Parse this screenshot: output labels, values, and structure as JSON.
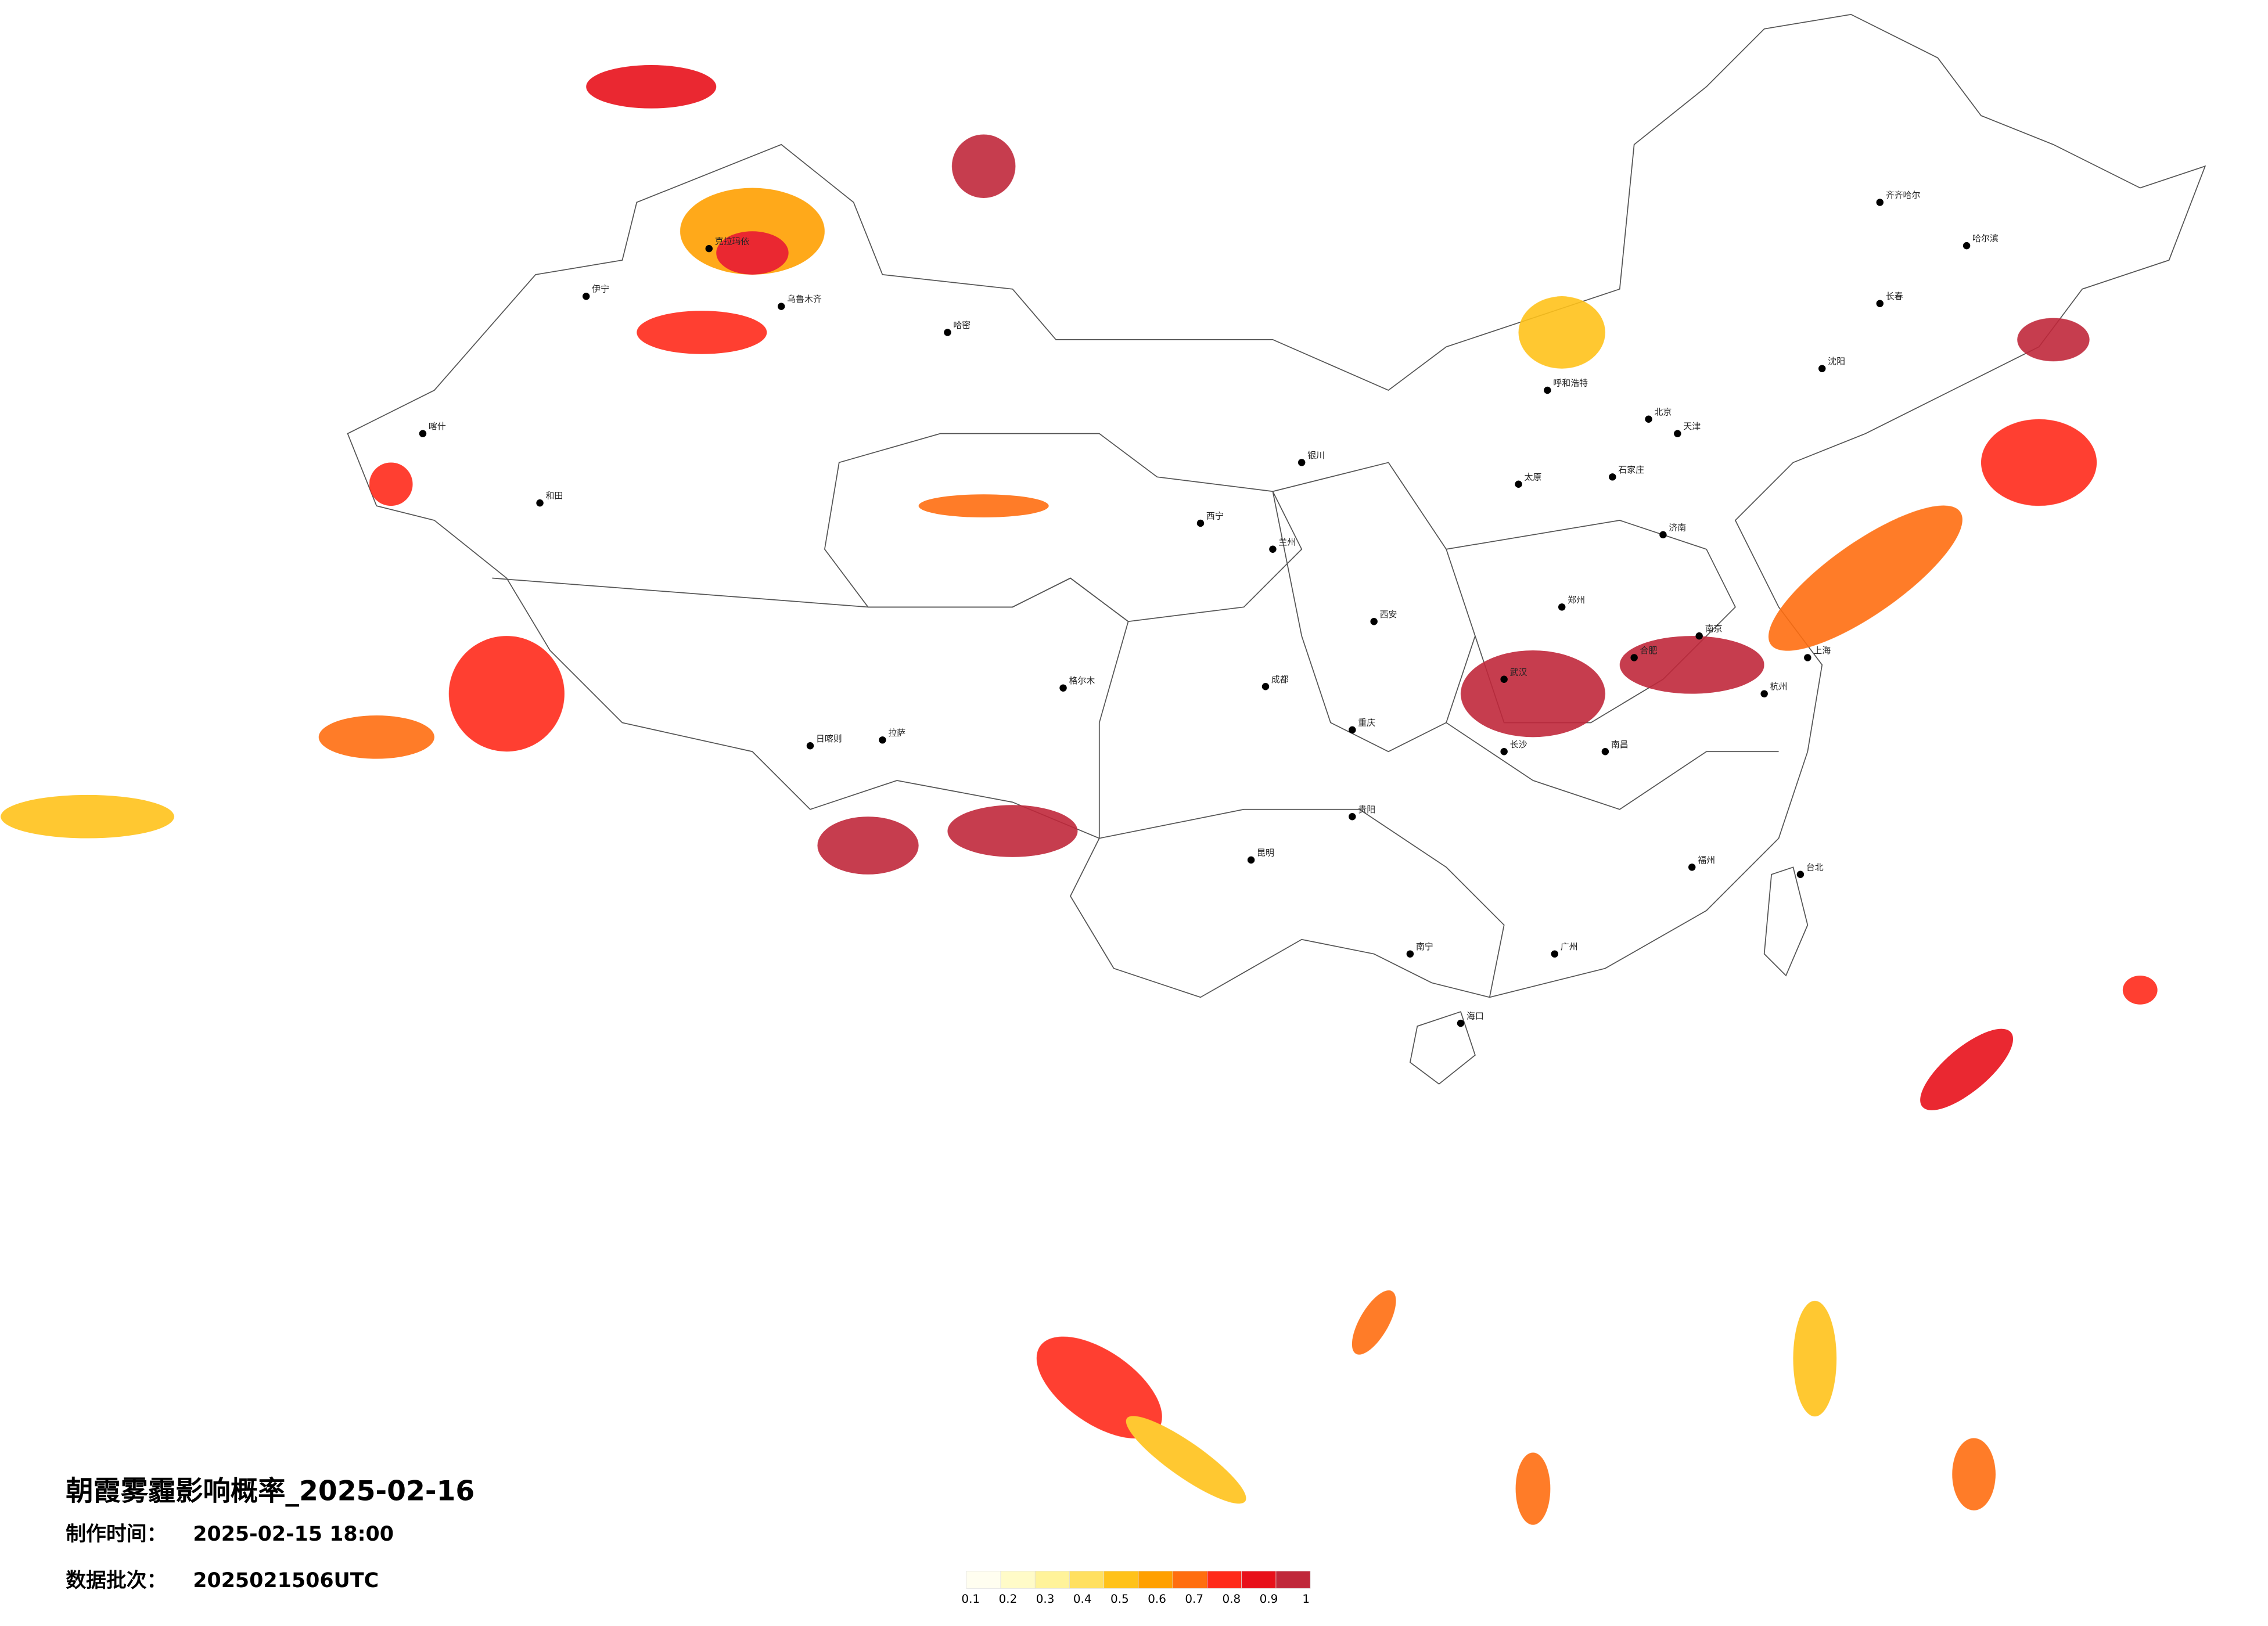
{
  "title": "朝霞雾霾影响概率_2025-02-16",
  "make_time": {
    "label": "制作时间：",
    "value": "2025-02-15 18:00"
  },
  "data_batch": {
    "label": "数据批次：",
    "value": "2025021506UTC"
  },
  "legend": {
    "ticks": [
      0.1,
      0.2,
      0.3,
      0.4,
      0.5,
      0.6,
      0.7,
      0.8,
      0.9,
      1
    ],
    "colors": [
      "#fffef0",
      "#fffbc8",
      "#fff39a",
      "#ffe060",
      "#ffc21a",
      "#ffa000",
      "#ff6e10",
      "#ff2a1a",
      "#e8101a",
      "#c0283a"
    ]
  },
  "cities": [
    "乌鲁木齐",
    "克拉玛依",
    "伊宁",
    "喀什",
    "和田",
    "哈密",
    "拉萨",
    "日喀则",
    "格尔木",
    "西宁",
    "兰州",
    "银川",
    "呼和浩特",
    "北京",
    "天津",
    "石家庄",
    "太原",
    "济南",
    "郑州",
    "西安",
    "成都",
    "重庆",
    "武汉",
    "长沙",
    "南京",
    "上海",
    "杭州",
    "合肥",
    "南昌",
    "福州",
    "台北",
    "广州",
    "南宁",
    "海口",
    "昆明",
    "贵阳",
    "沈阳",
    "长春",
    "哈尔滨",
    "齐齐哈尔"
  ]
}
